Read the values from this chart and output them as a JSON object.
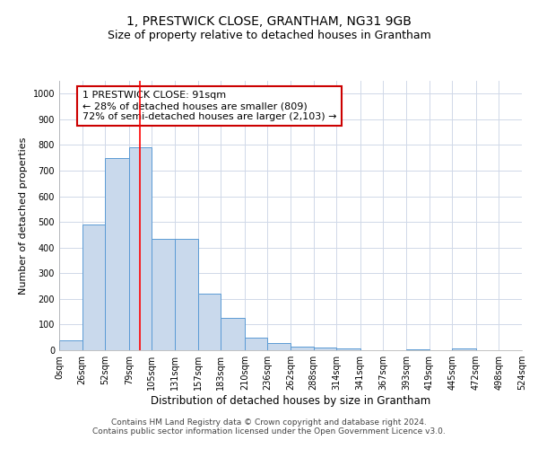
{
  "title": "1, PRESTWICK CLOSE, GRANTHAM, NG31 9GB",
  "subtitle": "Size of property relative to detached houses in Grantham",
  "xlabel": "Distribution of detached houses by size in Grantham",
  "ylabel": "Number of detached properties",
  "bar_edges": [
    0,
    26,
    52,
    79,
    105,
    131,
    157,
    183,
    210,
    236,
    262,
    288,
    314,
    341,
    367,
    393,
    419,
    445,
    472,
    498,
    524
  ],
  "bar_heights": [
    40,
    490,
    750,
    790,
    435,
    435,
    220,
    125,
    50,
    28,
    15,
    12,
    8,
    0,
    0,
    5,
    0,
    8,
    0,
    0
  ],
  "bar_color": "#c9d9ec",
  "bar_edgecolor": "#5b9bd5",
  "grid_color": "#d0d8e8",
  "red_line_x": 91,
  "annotation_text": "1 PRESTWICK CLOSE: 91sqm\n← 28% of detached houses are smaller (809)\n72% of semi-detached houses are larger (2,103) →",
  "annotation_box_color": "#ffffff",
  "annotation_box_edgecolor": "#cc0000",
  "ylim": [
    0,
    1050
  ],
  "yticks": [
    0,
    100,
    200,
    300,
    400,
    500,
    600,
    700,
    800,
    900,
    1000
  ],
  "tick_labels": [
    "0sqm",
    "26sqm",
    "52sqm",
    "79sqm",
    "105sqm",
    "131sqm",
    "157sqm",
    "183sqm",
    "210sqm",
    "236sqm",
    "262sqm",
    "288sqm",
    "314sqm",
    "341sqm",
    "367sqm",
    "393sqm",
    "419sqm",
    "445sqm",
    "472sqm",
    "498sqm",
    "524sqm"
  ],
  "footer_line1": "Contains HM Land Registry data © Crown copyright and database right 2024.",
  "footer_line2": "Contains public sector information licensed under the Open Government Licence v3.0.",
  "title_fontsize": 10,
  "subtitle_fontsize": 9,
  "xlabel_fontsize": 8.5,
  "ylabel_fontsize": 8,
  "tick_fontsize": 7,
  "footer_fontsize": 6.5,
  "annotation_fontsize": 8
}
